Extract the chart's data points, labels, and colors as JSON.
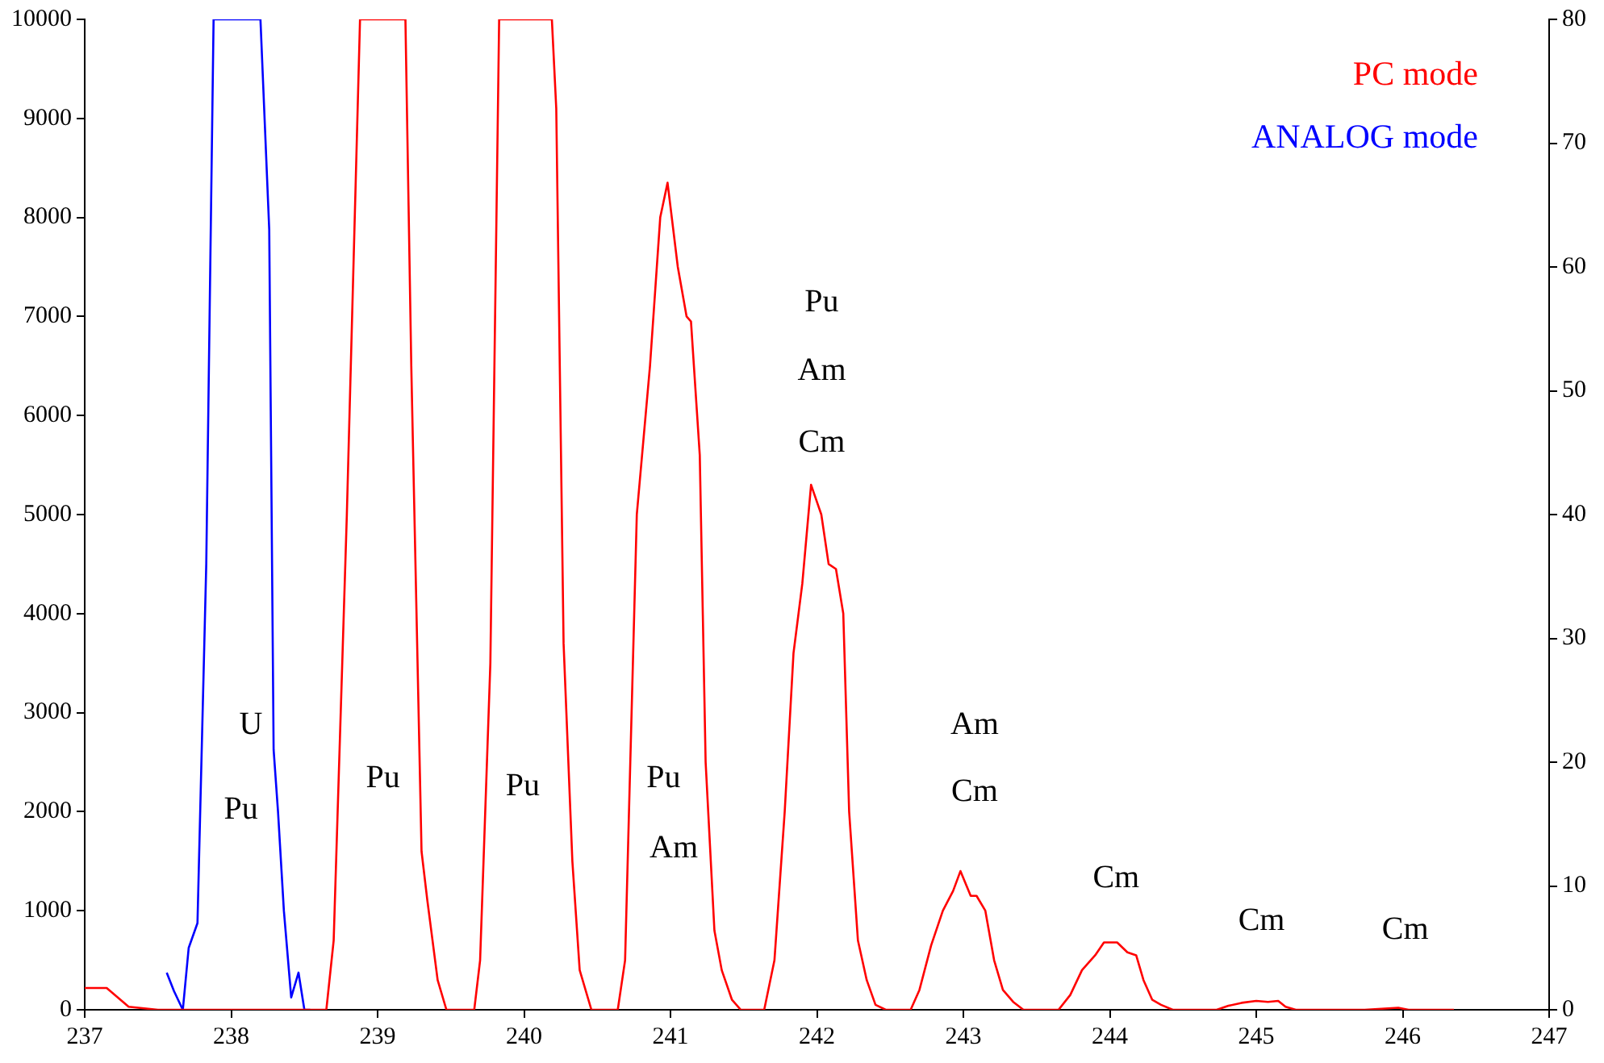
{
  "chart_data": {
    "type": "line",
    "legend": "top right",
    "marker": "none",
    "line_style": "solid",
    "xlim": [
      237,
      247
    ],
    "xticks": [
      237,
      238,
      239,
      240,
      241,
      242,
      243,
      244,
      245,
      246,
      247
    ],
    "ylim": [
      0,
      10000
    ],
    "yticks": [
      0,
      1000,
      2000,
      3000,
      4000,
      5000,
      6000,
      7000,
      8000,
      9000,
      10000
    ],
    "y2lim": [
      0,
      80
    ],
    "y2ticks": [
      0,
      10,
      20,
      30,
      40,
      50,
      60,
      70,
      80
    ],
    "series": [
      {
        "name": "PC mode",
        "color": "#ff0000",
        "x": [
          237.0,
          237.15,
          237.3,
          237.5,
          238.65,
          238.7,
          238.79,
          238.88,
          239.19,
          239.23,
          239.3,
          239.34,
          239.41,
          239.47,
          239.66,
          239.7,
          239.77,
          239.83,
          240.19,
          240.22,
          240.27,
          240.33,
          240.38,
          240.46,
          240.64,
          240.69,
          240.77,
          240.86,
          240.93,
          240.98,
          241.05,
          241.11,
          241.14,
          241.2,
          241.24,
          241.3,
          241.35,
          241.42,
          241.48,
          241.64,
          241.71,
          241.78,
          241.84,
          241.9,
          241.96,
          242.03,
          242.08,
          242.13,
          242.18,
          242.22,
          242.28,
          242.34,
          242.4,
          242.47,
          242.64,
          242.7,
          242.78,
          242.86,
          242.93,
          242.98,
          243.05,
          243.09,
          243.15,
          243.21,
          243.27,
          243.34,
          243.41,
          243.65,
          243.73,
          243.81,
          243.9,
          243.96,
          244.05,
          244.12,
          244.18,
          244.23,
          244.29,
          244.35,
          244.43,
          244.73,
          244.81,
          244.9,
          245.0,
          245.08,
          245.15,
          245.2,
          245.27,
          245.74,
          245.97,
          246.04,
          246.35
        ],
        "values": [
          220,
          220,
          30,
          0,
          0,
          700,
          5000,
          10000,
          10000,
          6500,
          1600,
          1100,
          300,
          0,
          0,
          500,
          3500,
          10000,
          10000,
          9100,
          3700,
          1500,
          400,
          0,
          0,
          500,
          5000,
          6500,
          8000,
          8350,
          7500,
          7000,
          6950,
          5600,
          2500,
          800,
          400,
          100,
          0,
          0,
          500,
          2000,
          3600,
          4300,
          5300,
          5000,
          4500,
          4450,
          4000,
          2000,
          700,
          300,
          50,
          0,
          0,
          200,
          650,
          1000,
          1200,
          1400,
          1150,
          1150,
          1000,
          500,
          200,
          80,
          0,
          0,
          150,
          400,
          550,
          680,
          680,
          580,
          550,
          300,
          100,
          50,
          0,
          0,
          40,
          70,
          90,
          80,
          90,
          30,
          0,
          0,
          20,
          0,
          0
        ]
      },
      {
        "name": "ANALOG mode",
        "color": "#0000ff",
        "axis": "y2",
        "x": [
          237.56,
          237.61,
          237.67,
          237.71,
          237.77,
          237.83,
          237.88,
          238.2,
          238.26,
          238.29,
          238.32,
          238.36,
          238.41,
          238.46,
          238.5,
          238.54
        ],
        "values": [
          3,
          1.5,
          0,
          5,
          7,
          36,
          80,
          80,
          63,
          21,
          16,
          8,
          1,
          3,
          0,
          0
        ]
      }
    ],
    "annotations": [
      "U",
      "Pu",
      "Pu",
      "Pu",
      "Pu",
      "Am",
      "Pu",
      "Am",
      "Cm",
      "Am",
      "Cm",
      "Cm",
      "Cm",
      "Cm"
    ]
  }
}
